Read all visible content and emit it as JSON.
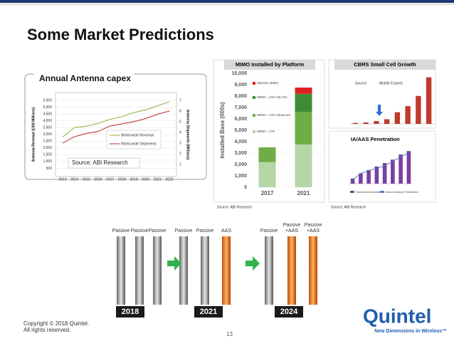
{
  "header": {
    "title": "Some Market Predictions"
  },
  "panels": {
    "capex": "Annual Antenna capex",
    "capex_source": "Source: ABI Research",
    "source_left": "Source: ABI Research",
    "source_right": "Source: ABI Research"
  },
  "chart_data": [
    {
      "type": "line",
      "categories": [
        "2013",
        "2014",
        "2015",
        "2016",
        "2017",
        "2018",
        "2019",
        "2020",
        "2021",
        "2022"
      ],
      "ylabel": "Antenna Revenue (US$ Millions)",
      "y2label": "Antenna Shipments (Millions)",
      "ylim": [
        0,
        5500
      ],
      "yticks": [
        {
          "value": 500,
          "label": "500"
        },
        {
          "value": 1000,
          "label": "1,000"
        },
        {
          "value": 1500,
          "label": "1,500"
        },
        {
          "value": 2000,
          "label": "2,000"
        },
        {
          "value": 2500,
          "label": "2,500"
        },
        {
          "value": 3000,
          "label": "3,000"
        },
        {
          "value": 3500,
          "label": "3,500"
        },
        {
          "value": 4000,
          "label": "4,000"
        },
        {
          "value": 4500,
          "label": "4,500"
        },
        {
          "value": 5000,
          "label": "5,000"
        },
        {
          "value": 5500,
          "label": "5,500"
        }
      ],
      "y2lim": [
        0,
        7
      ],
      "y2ticks": [
        1,
        2,
        3,
        4,
        5,
        6,
        7
      ],
      "grid": true,
      "series": [
        {
          "name": "World-wide Revenue",
          "color": "#9bbb59",
          "values": [
            2800,
            3500,
            3600,
            3800,
            4100,
            4300,
            4600,
            4800,
            5100,
            5400
          ]
        },
        {
          "name": "World-wide Shipments",
          "color": "#c0504d",
          "axis": "y2",
          "values": [
            3.0,
            3.6,
            3.9,
            4.1,
            4.6,
            4.8,
            5.0,
            5.3,
            5.7,
            6.0
          ]
        }
      ]
    },
    {
      "type": "stacked_bar",
      "title": "MIMO Installed by Platform",
      "ylabel": "Installed Base (000s)",
      "categories": [
        "2017",
        "2021"
      ],
      "ylim": [
        0,
        10000
      ],
      "yticks": [
        0,
        {
          "value": 1000,
          "label": "1,000"
        },
        {
          "value": 2000,
          "label": "2,000"
        },
        {
          "value": 3000,
          "label": "3,000"
        },
        {
          "value": 4000,
          "label": "4,000"
        },
        {
          "value": 5000,
          "label": "5,000"
        },
        {
          "value": 6000,
          "label": "6,000"
        },
        {
          "value": 7000,
          "label": "7,000"
        },
        {
          "value": 8000,
          "label": "8,000"
        },
        {
          "value": 9000,
          "label": "9,000"
        },
        {
          "value": 10000,
          "label": "10,000"
        }
      ],
      "series": [
        {
          "name": "MIMO = LTE",
          "color": "#b5d6a7",
          "values": [
            2200,
            3750
          ]
        },
        {
          "name": "MIMO = LTE-Advanced",
          "color": "#70ad47",
          "values": [
            1300,
            2850
          ]
        },
        {
          "name": "MIMO = LTE-Adv Pro",
          "color": "#3d8b37",
          "values": [
            0,
            1600
          ]
        },
        {
          "name": "Massive MIMO",
          "color": "#e02020",
          "values": [
            0,
            550
          ]
        }
      ]
    },
    {
      "type": "bar",
      "title": "CBRS Small Cell Growth",
      "categories": [
        null,
        null,
        null,
        null,
        null,
        null,
        null,
        null
      ],
      "values": [
        2,
        3,
        6,
        10,
        25,
        38,
        60,
        100
      ],
      "ylim": [
        0,
        110
      ],
      "color": "#c0392b",
      "annotations": [
        "Source:",
        "Mobile Experts"
      ]
    },
    {
      "type": "bar_line",
      "title": "IA/AAS Penetration",
      "categories": [
        null,
        null,
        null,
        null,
        null,
        null,
        null,
        null
      ],
      "ylim": [
        0,
        110
      ],
      "y2lim": [
        0,
        110
      ],
      "series": [
        {
          "name": "Total Active Antennas",
          "color": "#7b3f9e",
          "values": [
            15,
            30,
            40,
            50,
            60,
            70,
            85,
            95
          ]
        },
        {
          "name": "Active Antenna Penetration",
          "color": "#4f81bd",
          "axis": "y2",
          "values": [
            10,
            30,
            38,
            45,
            52,
            65,
            78,
            90
          ]
        }
      ]
    }
  ],
  "diagram": {
    "groups": [
      {
        "year": "2018",
        "items": [
          [
            "Passive"
          ],
          [
            "Passive"
          ],
          [
            "Passive"
          ]
        ]
      },
      {
        "year": "2021",
        "items": [
          [
            "Passive"
          ],
          [
            "Passive"
          ],
          [
            "AAS"
          ]
        ]
      },
      {
        "year": "2024",
        "items": [
          [
            "Passive"
          ],
          [
            "Passive",
            "+AAS"
          ],
          [
            "Passive",
            "+AAS"
          ]
        ]
      }
    ]
  },
  "footer": {
    "copyright": "Copyright © 2018 Quintel.",
    "rights": "All rights reserved.",
    "page": "13",
    "logo": "Quintel",
    "tagline": "New Dimensions in Wireless™"
  }
}
